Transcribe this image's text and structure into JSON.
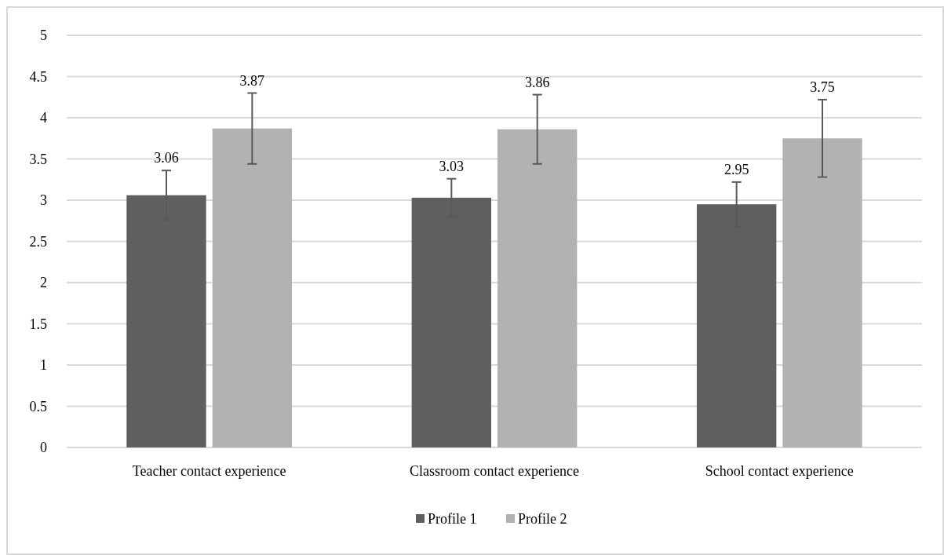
{
  "chart_data": {
    "type": "bar",
    "categories": [
      "Teacher contact experience",
      "Classroom contact experience",
      "School contact experience"
    ],
    "series": [
      {
        "name": "Profile 1",
        "color": "#5f5f5f",
        "values": [
          3.06,
          3.03,
          2.95
        ],
        "errors": [
          0.3,
          0.23,
          0.27
        ]
      },
      {
        "name": "Profile 2",
        "color": "#b2b2b2",
        "values": [
          3.87,
          3.86,
          3.75
        ],
        "errors": [
          0.43,
          0.42,
          0.47
        ]
      }
    ],
    "ylim": [
      0,
      5
    ],
    "yticks": [
      0,
      0.5,
      1,
      1.5,
      2,
      2.5,
      3,
      3.5,
      4,
      4.5,
      5
    ],
    "grid": "y",
    "legend": "bottom",
    "data_labels": true
  }
}
